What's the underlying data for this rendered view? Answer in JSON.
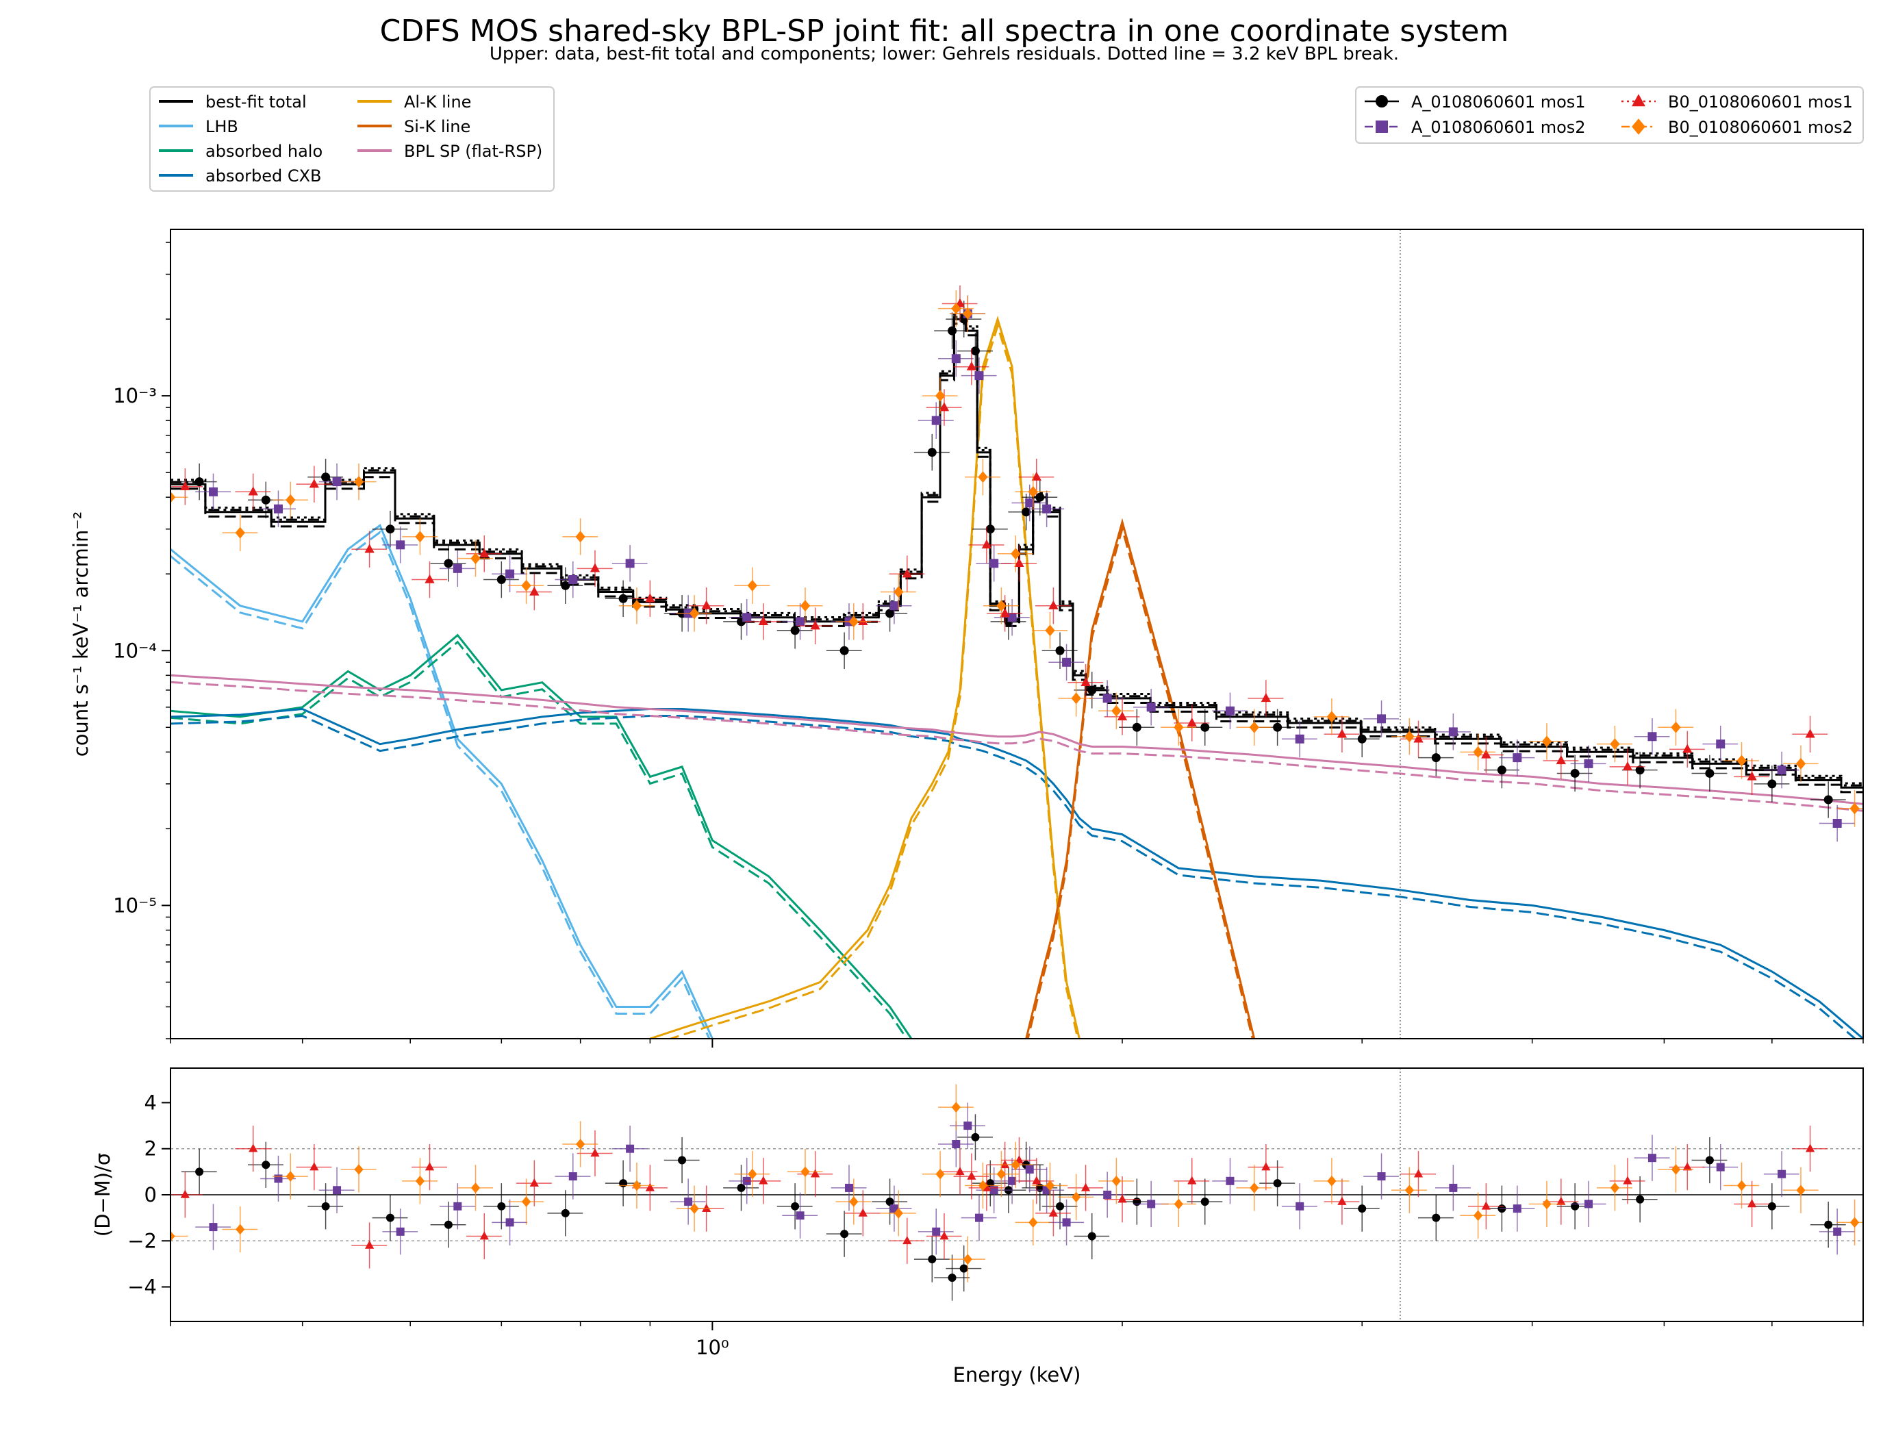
{
  "chart_data": {
    "title": "CDFS MOS shared-sky BPL-SP joint fit: all spectra in one coordinate system",
    "subtitle": "Upper: data, best-fit total and components; lower: Gehrels residuals. Dotted line = 3.2 keV BPL break.",
    "xlabel": "Energy (keV)",
    "x_scale": "log",
    "xlim": [
      0.4,
      7.0
    ],
    "x_tick_labels": [
      {
        "value": 1.0,
        "label": "10⁰"
      }
    ],
    "break_energy_keV": 3.2,
    "panels": [
      {
        "id": "spectrum",
        "type": "line",
        "ylabel": "count s⁻¹ keV⁻¹ arcmin⁻²",
        "y_scale": "log",
        "ylim": [
          3e-06,
          0.0045
        ],
        "y_tick_labels": [
          {
            "value": 0.001,
            "label": "10⁻³"
          },
          {
            "value": 0.0001,
            "label": "10⁻⁴"
          },
          {
            "value": 1e-05,
            "label": "10⁻⁵"
          }
        ]
      },
      {
        "id": "residuals",
        "type": "scatter",
        "ylabel": "(D−M)/σ",
        "ylim": [
          -5.5,
          5.5
        ],
        "y_ticks": [
          4,
          2,
          0,
          -2,
          -4
        ],
        "y_tick_labels": [
          "4",
          "2",
          "0",
          "−2",
          "−4"
        ],
        "reference_lines": [
          0,
          2,
          -2
        ]
      }
    ],
    "model_legend": {
      "placement": "top-left",
      "entries": [
        {
          "name": "best-fit total",
          "color": "#000000"
        },
        {
          "name": "LHB",
          "color": "#56b4e9"
        },
        {
          "name": "absorbed halo",
          "color": "#009e73"
        },
        {
          "name": "absorbed CXB",
          "color": "#0072b2"
        },
        {
          "name": "Al-K line",
          "color": "#e69f00"
        },
        {
          "name": "Si-K line",
          "color": "#d55e00"
        },
        {
          "name": "BPL SP (flat-RSP)",
          "color": "#cc79a7"
        }
      ]
    },
    "data_legend": {
      "placement": "top-right",
      "entries": [
        {
          "name": "A_0108060601 mos1",
          "color": "#000000",
          "marker": "circle",
          "linestyle": "solid"
        },
        {
          "name": "A_0108060601 mos2",
          "color": "#6a3d9a",
          "marker": "square",
          "linestyle": "dashed"
        },
        {
          "name": "B0_0108060601 mos1",
          "color": "#e31a1c",
          "marker": "triangle",
          "linestyle": "dotted"
        },
        {
          "name": "B0_0108060601 mos2",
          "color": "#ff7f00",
          "marker": "diamond",
          "linestyle": "dashdot"
        }
      ]
    },
    "model_components": {
      "energies_keV": [
        0.4,
        0.45,
        0.5,
        0.54,
        0.57,
        0.6,
        0.65,
        0.7,
        0.75,
        0.8,
        0.85,
        0.9,
        0.95,
        1.0,
        1.1,
        1.2,
        1.3,
        1.35,
        1.4,
        1.45,
        1.49,
        1.52,
        1.55,
        1.58,
        1.62,
        1.66,
        1.7,
        1.74,
        1.78,
        1.82,
        1.86,
        1.9,
        2.0,
        2.2,
        2.5,
        2.8,
        3.2,
        3.6,
        4.0,
        4.5,
        5.0,
        5.5,
        6.0,
        6.5,
        7.0
      ],
      "LHB": [
        0.00025,
        0.00015,
        0.00013,
        0.00025,
        0.00031,
        0.00016,
        4.5e-05,
        3e-05,
        1.5e-05,
        7e-06,
        4e-06,
        4e-06,
        5.5e-06,
        3e-06,
        null,
        null,
        null,
        null,
        null,
        null,
        null,
        null,
        null,
        null,
        null,
        null,
        null,
        null,
        null,
        null,
        null,
        null,
        null,
        null,
        null,
        null,
        null,
        null,
        null,
        null,
        null,
        null,
        null,
        null,
        null
      ],
      "absorbed halo": [
        5.8e-05,
        5.5e-05,
        6e-05,
        8.3e-05,
        7e-05,
        8e-05,
        0.000115,
        7e-05,
        7.5e-05,
        5.5e-05,
        5.5e-05,
        3.2e-05,
        3.5e-05,
        1.8e-05,
        1.3e-05,
        8e-06,
        5e-06,
        4e-06,
        3e-06,
        null,
        null,
        null,
        null,
        null,
        null,
        null,
        null,
        null,
        null,
        null,
        null,
        null,
        null,
        null,
        null,
        null,
        null,
        null,
        null,
        null,
        null,
        null,
        null,
        null,
        null
      ],
      "absorbed CXB": [
        5.5e-05,
        5.6e-05,
        5.9e-05,
        4.9e-05,
        4.3e-05,
        4.5e-05,
        4.9e-05,
        5.2e-05,
        5.5e-05,
        5.7e-05,
        5.8e-05,
        5.9e-05,
        5.9e-05,
        5.8e-05,
        5.6e-05,
        5.4e-05,
        5.2e-05,
        5.1e-05,
        4.9e-05,
        4.8e-05,
        4.7e-05,
        4.5e-05,
        4.4e-05,
        4.3e-05,
        4.1e-05,
        3.9e-05,
        3.7e-05,
        3.4e-05,
        3e-05,
        2.6e-05,
        2.2e-05,
        2e-05,
        1.9e-05,
        1.4e-05,
        1.3e-05,
        1.25e-05,
        1.15e-05,
        1.05e-05,
        1e-05,
        9e-06,
        8e-06,
        7e-06,
        5.5e-06,
        4.2e-06,
        3e-06
      ],
      "Al-K line": [
        null,
        null,
        null,
        null,
        null,
        null,
        null,
        null,
        null,
        null,
        null,
        3e-06,
        3.3e-06,
        3.6e-06,
        4.2e-06,
        5e-06,
        8e-06,
        1.2e-05,
        2.2e-05,
        3e-05,
        4e-05,
        7e-05,
        0.00028,
        0.0013,
        0.002,
        0.0013,
        0.00025,
        6e-05,
        1.5e-05,
        5e-06,
        3e-06,
        null,
        null,
        null,
        null,
        null,
        null,
        null,
        null,
        null,
        null,
        null,
        null,
        null,
        null
      ],
      "Si-K line": [
        null,
        null,
        null,
        null,
        null,
        null,
        null,
        null,
        null,
        null,
        null,
        null,
        null,
        null,
        null,
        null,
        null,
        null,
        null,
        null,
        null,
        null,
        null,
        null,
        null,
        null,
        3e-06,
        5e-06,
        8e-06,
        1.5e-05,
        4e-05,
        0.00012,
        0.00032,
        5e-05,
        3e-06,
        null,
        null,
        null,
        null,
        null,
        null,
        null,
        null,
        null,
        null
      ],
      "BPL SP (flat-RSP)": [
        8e-05,
        7.7e-05,
        7.4e-05,
        7.2e-05,
        7.1e-05,
        7e-05,
        6.8e-05,
        6.6e-05,
        6.4e-05,
        6.2e-05,
        6e-05,
        5.9e-05,
        5.8e-05,
        5.7e-05,
        5.5e-05,
        5.3e-05,
        5.1e-05,
        5e-05,
        4.95e-05,
        4.9e-05,
        4.8e-05,
        4.75e-05,
        4.7e-05,
        4.65e-05,
        4.6e-05,
        4.6e-05,
        4.65e-05,
        4.8e-05,
        4.7e-05,
        4.5e-05,
        4.3e-05,
        4.2e-05,
        4.2e-05,
        4.1e-05,
        3.9e-05,
        3.7e-05,
        3.5e-05,
        3.3e-05,
        3.2e-05,
        3e-05,
        2.9e-05,
        2.8e-05,
        2.7e-05,
        2.6e-05,
        2.5e-05
      ]
    },
    "best_fit_total": {
      "energies_keV": [
        0.4,
        0.45,
        0.5,
        0.54,
        0.57,
        0.6,
        0.65,
        0.7,
        0.75,
        0.8,
        0.85,
        0.9,
        0.95,
        1.0,
        1.1,
        1.2,
        1.3,
        1.35,
        1.4,
        1.45,
        1.49,
        1.52,
        1.55,
        1.58,
        1.62,
        1.66,
        1.7,
        1.74,
        1.78,
        1.82,
        1.86,
        1.9,
        2.0,
        2.2,
        2.5,
        2.8,
        3.2,
        3.6,
        4.0,
        4.5,
        5.0,
        5.5,
        6.0,
        6.5,
        7.0
      ],
      "values": [
        0.00045,
        0.00035,
        0.00032,
        0.00045,
        0.0005,
        0.00033,
        0.00026,
        0.00024,
        0.00021,
        0.00019,
        0.00017,
        0.000155,
        0.000145,
        0.00014,
        0.000135,
        0.00013,
        0.000135,
        0.00015,
        0.0002,
        0.0004,
        0.0012,
        0.002,
        0.0018,
        0.0006,
        0.00015,
        0.00013,
        0.00025,
        0.0004,
        0.00035,
        0.00015,
        8e-05,
        7e-05,
        6.5e-05,
        6e-05,
        5.5e-05,
        5.2e-05,
        4.8e-05,
        4.5e-05,
        4.2e-05,
        4e-05,
        3.8e-05,
        3.6e-05,
        3.4e-05,
        3.1e-05,
        2.9e-05
      ]
    },
    "series": [
      {
        "name": "A_0108060601 mos1",
        "x": [
          0.42,
          0.47,
          0.52,
          0.58,
          0.64,
          0.7,
          0.78,
          0.86,
          0.95,
          1.05,
          1.15,
          1.25,
          1.35,
          1.45,
          1.5,
          1.53,
          1.56,
          1.6,
          1.65,
          1.7,
          1.74,
          1.8,
          1.9,
          2.05,
          2.3,
          2.6,
          3.0,
          3.4,
          3.8,
          4.3,
          4.8,
          5.4,
          6.0,
          6.6
        ],
        "y": [
          0.00046,
          0.00039,
          0.00048,
          0.0003,
          0.00022,
          0.00019,
          0.00018,
          0.00016,
          0.00014,
          0.00013,
          0.00012,
          0.0001,
          0.00014,
          0.0006,
          0.0018,
          0.002,
          0.0015,
          0.0003,
          0.00013,
          0.00035,
          0.0004,
          0.0001,
          7e-05,
          5e-05,
          5e-05,
          5e-05,
          4.5e-05,
          3.8e-05,
          3.4e-05,
          3.3e-05,
          3.4e-05,
          3.3e-05,
          3e-05,
          2.6e-05
        ],
        "residuals": [
          1.0,
          1.3,
          -0.5,
          -1.0,
          -1.3,
          -0.5,
          -0.8,
          0.5,
          1.5,
          0.3,
          -0.5,
          -1.7,
          -0.3,
          -2.8,
          -3.6,
          -3.2,
          2.5,
          0.5,
          0.2,
          1.3,
          0.3,
          -0.5,
          -1.8,
          -0.3,
          -0.3,
          0.5,
          -0.6,
          -1.0,
          -0.6,
          -0.5,
          -0.2,
          1.5,
          -0.5,
          -1.3
        ]
      },
      {
        "name": "A_0108060601 mos2",
        "x": [
          0.43,
          0.48,
          0.53,
          0.59,
          0.65,
          0.71,
          0.79,
          0.87,
          0.96,
          1.06,
          1.16,
          1.26,
          1.36,
          1.46,
          1.51,
          1.54,
          1.57,
          1.61,
          1.66,
          1.71,
          1.76,
          1.82,
          1.95,
          2.1,
          2.4,
          2.7,
          3.1,
          3.5,
          3.9,
          4.4,
          4.9,
          5.5,
          6.1,
          6.7
        ],
        "y": [
          0.00042,
          0.00036,
          0.00046,
          0.00026,
          0.00021,
          0.0002,
          0.00019,
          0.00022,
          0.00014,
          0.000135,
          0.00013,
          0.00013,
          0.00015,
          0.0008,
          0.0014,
          0.0021,
          0.0012,
          0.00022,
          0.000135,
          0.00038,
          0.00036,
          9e-05,
          6.5e-05,
          6e-05,
          5.8e-05,
          4.5e-05,
          5.4e-05,
          4.8e-05,
          3.8e-05,
          3.6e-05,
          4.6e-05,
          4.3e-05,
          3.4e-05,
          2.1e-05
        ],
        "residuals": [
          -1.4,
          0.7,
          0.2,
          -1.6,
          -0.5,
          -1.2,
          0.8,
          2.0,
          -0.3,
          0.6,
          -0.9,
          0.3,
          -0.6,
          -1.6,
          2.2,
          3.0,
          -1.0,
          0.2,
          0.6,
          1.1,
          0.2,
          -1.2,
          0.0,
          -0.4,
          0.6,
          -0.5,
          0.8,
          0.3,
          -0.6,
          -0.4,
          1.6,
          1.2,
          0.9,
          -1.6
        ]
      },
      {
        "name": "B0_0108060601 mos1",
        "x": [
          0.41,
          0.46,
          0.51,
          0.56,
          0.62,
          0.68,
          0.74,
          0.82,
          0.9,
          0.99,
          1.09,
          1.19,
          1.29,
          1.39,
          1.48,
          1.52,
          1.55,
          1.59,
          1.64,
          1.68,
          1.73,
          1.78,
          1.88,
          2.0,
          2.25,
          2.55,
          2.9,
          3.3,
          3.7,
          4.2,
          4.7,
          5.2,
          5.8,
          6.4
        ],
        "y": [
          0.00044,
          0.00042,
          0.00045,
          0.00025,
          0.00019,
          0.00024,
          0.00017,
          0.00021,
          0.00016,
          0.00015,
          0.00013,
          0.000125,
          0.00013,
          0.0002,
          0.0009,
          0.0023,
          0.0013,
          0.00026,
          0.00014,
          0.00022,
          0.00048,
          0.00015,
          7.5e-05,
          5.5e-05,
          5.2e-05,
          6.5e-05,
          4.7e-05,
          4.5e-05,
          3.9e-05,
          3.7e-05,
          3.5e-05,
          4.1e-05,
          3.2e-05,
          4.7e-05
        ],
        "residuals": [
          0.0,
          2.0,
          1.2,
          -2.2,
          1.2,
          -1.8,
          0.5,
          1.8,
          0.3,
          -0.6,
          0.6,
          0.9,
          -0.8,
          -2.0,
          -1.8,
          1.0,
          0.8,
          0.3,
          1.3,
          1.5,
          0.6,
          -0.8,
          0.3,
          -0.2,
          0.6,
          1.2,
          -0.3,
          0.9,
          -0.5,
          -0.3,
          0.6,
          1.2,
          -0.4,
          2.0
        ]
      },
      {
        "name": "B0_0108060601 mos2",
        "x": [
          0.4,
          0.45,
          0.49,
          0.55,
          0.61,
          0.67,
          0.73,
          0.8,
          0.88,
          0.97,
          1.07,
          1.17,
          1.27,
          1.37,
          1.47,
          1.51,
          1.54,
          1.58,
          1.63,
          1.67,
          1.72,
          1.77,
          1.85,
          1.98,
          2.2,
          2.5,
          2.85,
          3.25,
          3.65,
          4.1,
          4.6,
          5.1,
          5.7,
          6.3,
          6.9
        ],
        "y": [
          0.0004,
          0.00029,
          0.00039,
          0.00046,
          0.00028,
          0.00023,
          0.00018,
          0.00028,
          0.00015,
          0.00014,
          0.00018,
          0.00015,
          0.00013,
          0.00017,
          0.001,
          0.0022,
          0.0021,
          0.00048,
          0.00015,
          0.00024,
          0.00042,
          0.00012,
          6.5e-05,
          5.8e-05,
          5e-05,
          5e-05,
          5.5e-05,
          4.6e-05,
          4e-05,
          4.4e-05,
          4.3e-05,
          5e-05,
          3.7e-05,
          3.6e-05,
          2.4e-05
        ],
        "residuals": [
          -1.8,
          -1.5,
          0.8,
          1.1,
          0.6,
          0.3,
          -0.3,
          2.2,
          0.4,
          -0.6,
          0.9,
          1.0,
          -0.3,
          -0.8,
          0.9,
          3.8,
          -2.8,
          0.4,
          0.9,
          1.3,
          -1.2,
          0.4,
          -0.1,
          0.6,
          -0.4,
          0.3,
          0.6,
          0.2,
          -0.9,
          -0.4,
          0.3,
          1.1,
          0.4,
          0.2,
          -1.2
        ]
      }
    ]
  }
}
